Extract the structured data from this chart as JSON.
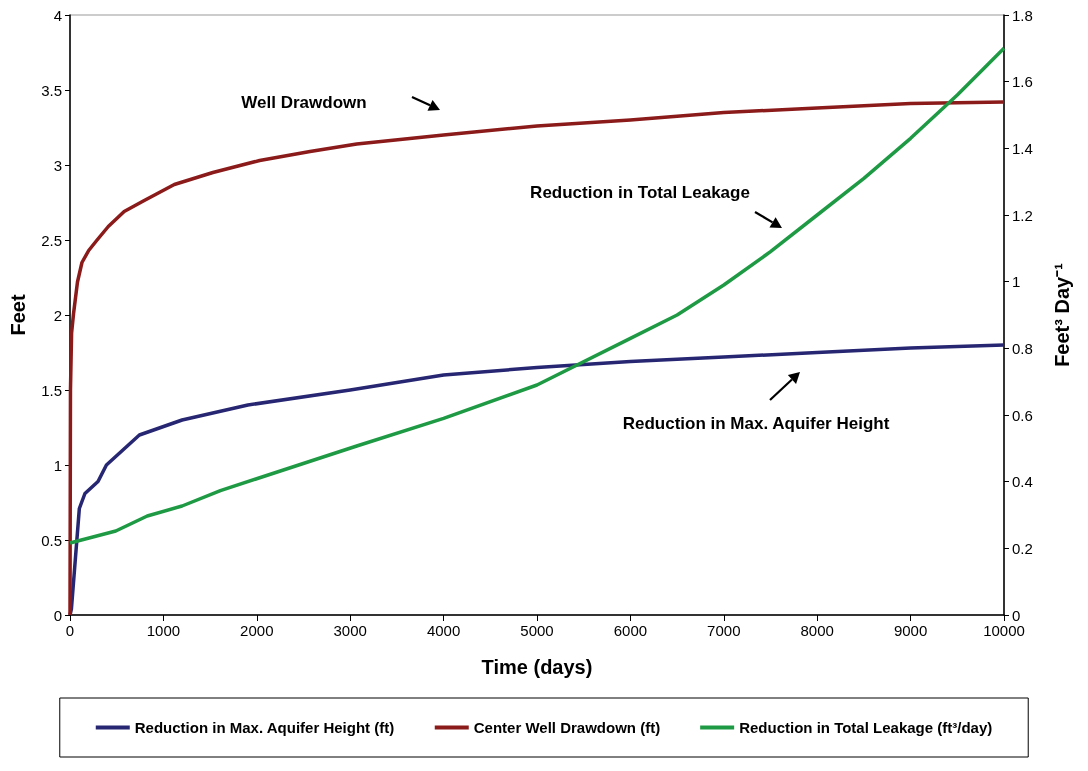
{
  "chart_data": {
    "type": "line",
    "xlabel": "Time (days)",
    "ylabel": "Feet",
    "y2label": "Feet³ Day⁻¹",
    "xlim": [
      0,
      10000
    ],
    "xticks": [
      0,
      1000,
      2000,
      3000,
      4000,
      5000,
      6000,
      7000,
      8000,
      9000,
      10000
    ],
    "ylim": [
      0,
      4
    ],
    "yticks": [
      0,
      0.5,
      1,
      1.5,
      2,
      2.5,
      3,
      3.5,
      4
    ],
    "y2lim": [
      0,
      1.8
    ],
    "y2ticks": [
      0,
      0.2,
      0.4,
      0.6,
      0.8,
      1,
      1.2,
      1.4,
      1.6,
      1.8
    ],
    "grid": false,
    "legend": "bottom",
    "marker": "none",
    "line_style": "solid",
    "annotations": [
      "Well Drawdown",
      "Reduction in Total Leakage",
      "Reduction in Max. Aquifer Height"
    ],
    "series": [
      {
        "name": "Reduction in Max. Aquifer Height (ft)",
        "color": "#262673",
        "x": [
          0,
          15,
          100,
          160,
          300,
          390,
          743,
          1200,
          1905,
          3000,
          4000,
          5000,
          6000,
          7000,
          8000,
          9000,
          10000
        ],
        "values": [
          0,
          0.04,
          0.71,
          0.81,
          0.89,
          1.0,
          1.2,
          1.3,
          1.4,
          1.5,
          1.6,
          1.65,
          1.69,
          1.72,
          1.75,
          1.78,
          1.8
        ]
      },
      {
        "name": "Center Well Drawdown (ft)",
        "color": "#8b1a1a",
        "x": [
          0,
          5,
          17,
          38,
          80,
          128,
          200,
          290,
          410,
          580,
          785,
          1117,
          1530,
          2030,
          2570,
          3070,
          4000,
          5000,
          6000,
          7000,
          8000,
          9000,
          10000
        ],
        "values": [
          0,
          1.5,
          1.88,
          2.01,
          2.22,
          2.35,
          2.43,
          2.5,
          2.59,
          2.69,
          2.76,
          2.87,
          2.95,
          3.03,
          3.09,
          3.14,
          3.2,
          3.26,
          3.3,
          3.35,
          3.38,
          3.41,
          3.42
        ]
      },
      {
        "name": "Reduction in Total Leakage (ft³/day)",
        "color": "#1f9a44",
        "axis": "y2",
        "x": [
          0,
          245,
          490,
          827,
          1200,
          1610,
          1990,
          3070,
          4000,
          5000,
          6000,
          6500,
          7000,
          7500,
          8000,
          8500,
          9000,
          9500,
          10000
        ],
        "values": [
          0.216,
          0.234,
          0.252,
          0.297,
          0.327,
          0.373,
          0.408,
          0.507,
          0.59,
          0.69,
          0.83,
          0.9,
          0.99,
          1.09,
          1.2,
          1.31,
          1.43,
          1.56,
          1.7
        ]
      }
    ]
  }
}
